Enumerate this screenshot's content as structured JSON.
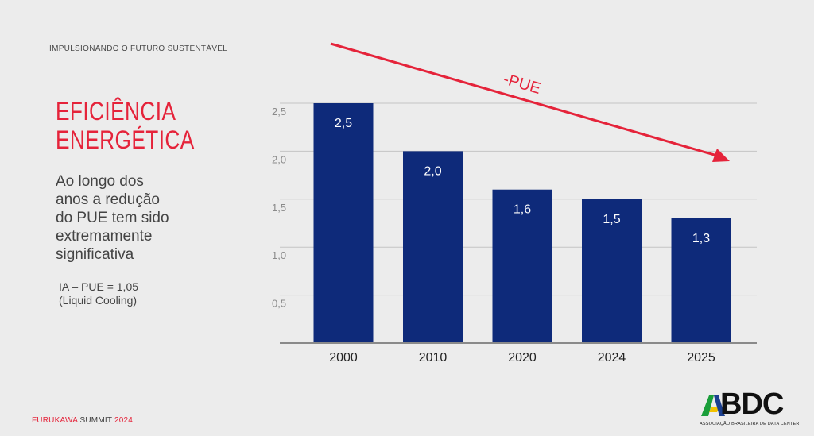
{
  "header": {
    "text": "IMPULSIONANDO O FUTURO SUSTENTÁVEL"
  },
  "title": {
    "line1": "EFICIÊNCIA",
    "line2": "ENERGÉTICA"
  },
  "body": {
    "lines": [
      "Ao longo dos",
      "anos a redução",
      "do PUE tem sido",
      "extremamente",
      "significativa"
    ]
  },
  "note": {
    "line1": "IA – PUE = 1,05",
    "line2": "(Liquid Cooling)"
  },
  "footer": {
    "event_prefix": "FURUKAWA ",
    "event_name": "SUMMIT",
    "event_year": " 2024"
  },
  "logo": {
    "text": "BDC",
    "subtitle": "ASSOCIAÇÃO BRASILEIRA DE DATA CENTER",
    "colors": {
      "green": "#1a9e3a",
      "yellow": "#f2c200",
      "blue": "#1b3f8f"
    }
  },
  "colors": {
    "bar": "#0e2a7a",
    "accent": "#e5233a",
    "grid": "#c4c4c4"
  },
  "chart_data": {
    "type": "bar",
    "categories": [
      "2000",
      "2010",
      "2020",
      "2024",
      "2025"
    ],
    "values": [
      2.5,
      2.0,
      1.6,
      1.5,
      1.3
    ],
    "value_labels": [
      "2,5",
      "2,0",
      "1,6",
      "1,5",
      "1,3"
    ],
    "y_ticks": [
      0.5,
      1.0,
      1.5,
      2.0,
      2.5
    ],
    "y_tick_labels": [
      "0,5",
      "1,0",
      "1,5",
      "2,0",
      "2,5"
    ],
    "ylim": [
      0,
      2.5
    ],
    "grid": true,
    "annotation": "-PUE"
  }
}
